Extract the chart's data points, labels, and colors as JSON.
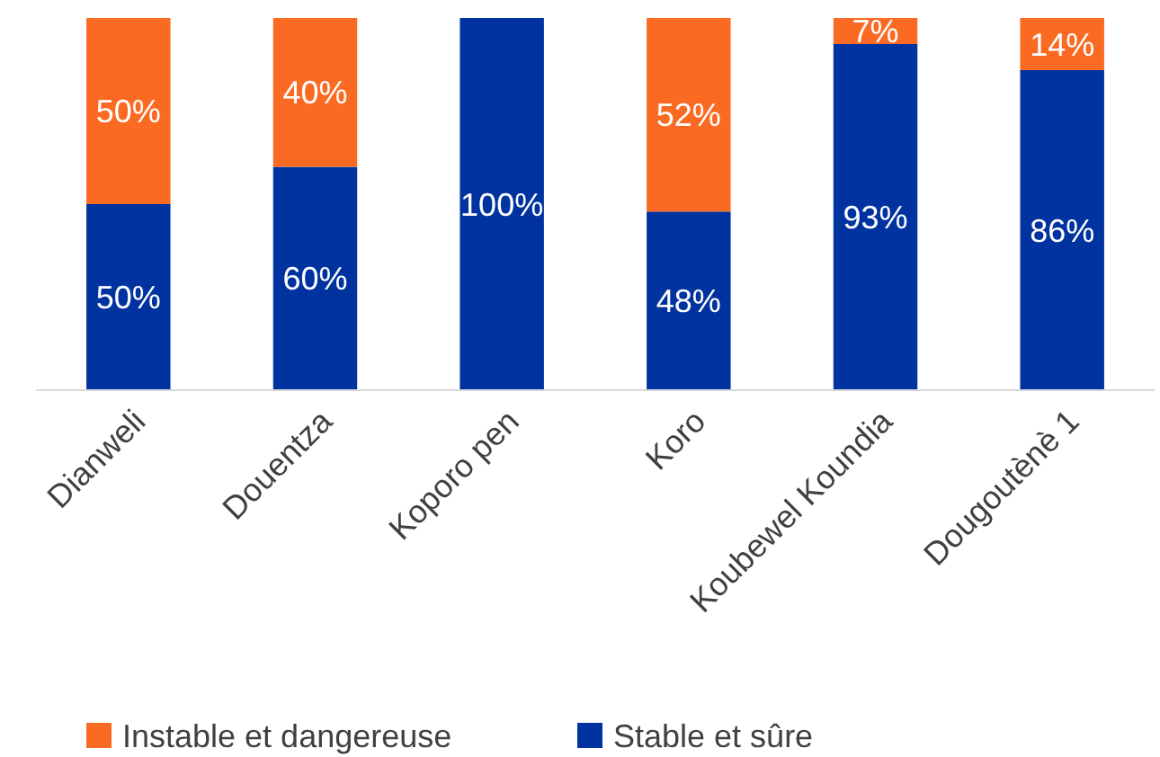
{
  "chart_data": {
    "type": "bar",
    "stacked": true,
    "categories": [
      "Dianweli",
      "Douentza",
      "Koporo pen",
      "Koro",
      "Koubewel Koundia",
      "Dougoutènè 1"
    ],
    "ylim": [
      0,
      100
    ],
    "tick_labels": "x",
    "legend": "bottom",
    "series": [
      {
        "name": "Stable et sûre",
        "color": "#0033a0",
        "values": [
          50,
          60,
          100,
          48,
          93,
          86
        ],
        "value_labels": [
          "50%",
          "60%",
          "100%",
          "48%",
          "93%",
          "86%"
        ]
      },
      {
        "name": "Instable et dangereuse",
        "color": "#fb6a22",
        "values": [
          50,
          40,
          0,
          52,
          7,
          14
        ],
        "value_labels": [
          "50%",
          "40%",
          null,
          "52%",
          "7%",
          "14%"
        ]
      }
    ]
  }
}
